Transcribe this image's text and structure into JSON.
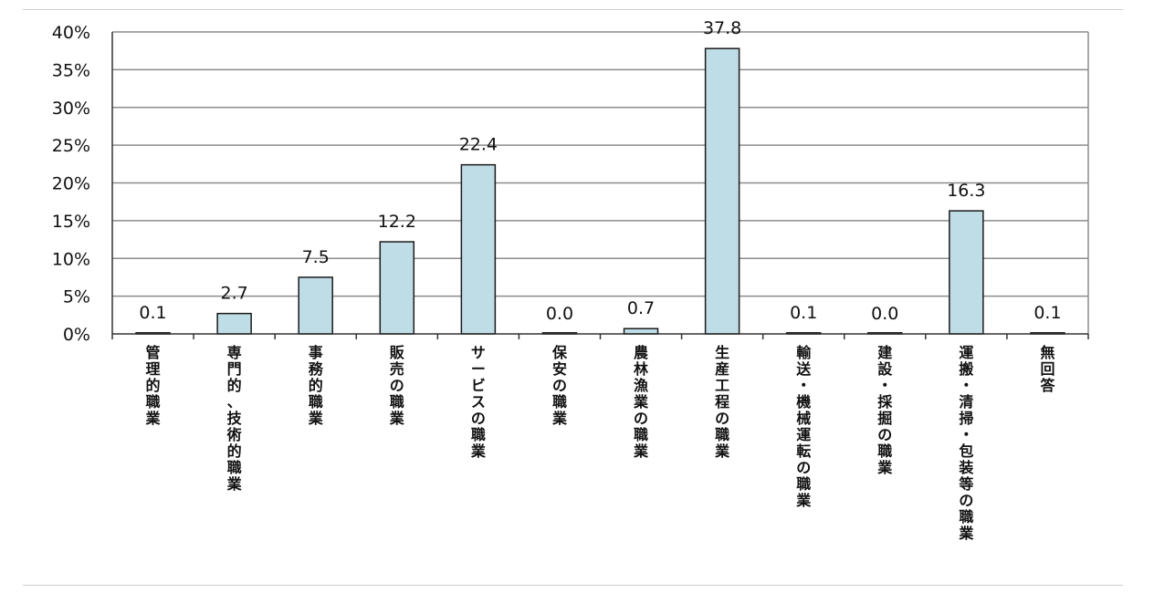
{
  "chart_data": {
    "type": "bar",
    "categories": [
      "管理的職業",
      "専門的、技術的職業",
      "事務的職業",
      "販売の職業",
      "サービスの職業",
      "保安の職業",
      "農林漁業の職業",
      "生産工程の職業",
      "輸送・機械運転の職業",
      "建設・採掘の職業",
      "運搬・清掃・包装等の職業",
      "無回答"
    ],
    "values": [
      0.1,
      2.7,
      7.5,
      12.2,
      22.4,
      0.0,
      0.7,
      37.8,
      0.1,
      0.0,
      16.3,
      0.1
    ],
    "value_labels": [
      "0.1",
      "2.7",
      "7.5",
      "12.2",
      "22.4",
      "0.0",
      "0.7",
      "37.8",
      "0.1",
      "0.0",
      "16.3",
      "0.1"
    ],
    "ylim": [
      0,
      40
    ],
    "y_ticks": [
      "0%",
      "5%",
      "10%",
      "15%",
      "20%",
      "25%",
      "30%",
      "35%",
      "40%"
    ],
    "grid": true,
    "legend": "none",
    "bar_color": "#bfdde6",
    "bar_edge_color": "#1a1a1a",
    "grid_color": "#8c8c8c"
  }
}
